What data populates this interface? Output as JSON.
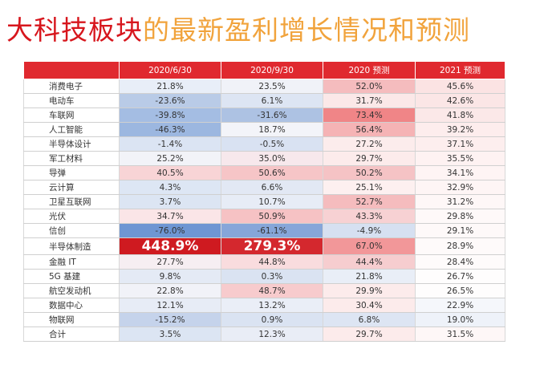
{
  "title": {
    "part1": "大科技板块",
    "part2": "的最新盈利增长情况和预测"
  },
  "table": {
    "headers": [
      "",
      "2020/6/30",
      "2020/9/30",
      "2020 预测",
      "2021 预测"
    ],
    "rows": [
      {
        "name": "消费电子",
        "cells": [
          "21.8%",
          "23.5%",
          "52.0%",
          "45.6%"
        ],
        "colors": [
          "#e8eef8",
          "#f0f2f8",
          "#f5bcbe",
          "#fbe3e3"
        ]
      },
      {
        "name": "电动车",
        "cells": [
          "-23.6%",
          "6.1%",
          "31.7%",
          "42.6%"
        ],
        "colors": [
          "#b9cbe7",
          "#dde5f3",
          "#fbe8e8",
          "#fbe6e6"
        ]
      },
      {
        "name": "车联网",
        "cells": [
          "-39.8%",
          "-31.6%",
          "73.4%",
          "41.8%"
        ],
        "colors": [
          "#a4bde3",
          "#adc2e3",
          "#f08587",
          "#fbe8e8"
        ]
      },
      {
        "name": "人工智能",
        "cells": [
          "-46.3%",
          "18.7%",
          "56.4%",
          "39.2%"
        ],
        "colors": [
          "#9cb7e0",
          "#f3f4f9",
          "#f5b3b5",
          "#fdeded"
        ]
      },
      {
        "name": "半导体设计",
        "cells": [
          "-1.4%",
          "-0.5%",
          "27.2%",
          "37.1%"
        ],
        "colors": [
          "#dbe4f3",
          "#d9e2f2",
          "#fcecec",
          "#fdeeee"
        ]
      },
      {
        "name": "军工材料",
        "cells": [
          "25.2%",
          "35.0%",
          "29.7%",
          "35.5%"
        ],
        "colors": [
          "#f2f3f8",
          "#f7e8ec",
          "#fcebeb",
          "#fef2f2"
        ]
      },
      {
        "name": "导弹",
        "cells": [
          "40.5%",
          "50.6%",
          "50.2%",
          "34.1%"
        ],
        "colors": [
          "#f8d4d6",
          "#f6c5c7",
          "#f5c3c5",
          "#fef4f4"
        ]
      },
      {
        "name": "云计算",
        "cells": [
          "4.3%",
          "6.6%",
          "25.1%",
          "32.9%"
        ],
        "colors": [
          "#dde6f4",
          "#e2e8f4",
          "#fdf0f0",
          "#fef5f5"
        ]
      },
      {
        "name": "卫星互联网",
        "cells": [
          "3.7%",
          "10.7%",
          "52.7%",
          "31.2%"
        ],
        "colors": [
          "#dce5f3",
          "#e7ecf6",
          "#f5bcbe",
          "#fef7f7"
        ]
      },
      {
        "name": "光伏",
        "cells": [
          "34.7%",
          "50.9%",
          "43.3%",
          "29.8%"
        ],
        "colors": [
          "#fae5e7",
          "#f6c2c4",
          "#f7d1d3",
          "#fef9f9"
        ]
      },
      {
        "name": "信创",
        "cells": [
          "-76.0%",
          "-61.1%",
          "-4.9%",
          "29.1%"
        ],
        "colors": [
          "#6e96d3",
          "#86a6d9",
          "#d6e0f1",
          "#fef9f9"
        ]
      },
      {
        "name": "半导体制造",
        "cells": [
          "448.9%",
          "279.3%",
          "67.0%",
          "28.9%"
        ],
        "colors": [
          "#cf1a20",
          "#d4282e",
          "#f29799",
          "#fefafa"
        ],
        "big": true
      },
      {
        "name": "金融 IT",
        "cells": [
          "27.7%",
          "44.8%",
          "44.4%",
          "28.4%"
        ],
        "colors": [
          "#f6eef2",
          "#f9dcde",
          "#f6cdcf",
          "#fefbfb"
        ]
      },
      {
        "name": "5G 基建",
        "cells": [
          "9.8%",
          "0.3%",
          "21.8%",
          "26.7%"
        ],
        "colors": [
          "#e4eaf5",
          "#dae3f2",
          "#e9eef7",
          "#fefdfd"
        ]
      },
      {
        "name": "航空发动机",
        "cells": [
          "22.8%",
          "48.7%",
          "29.9%",
          "26.5%"
        ],
        "colors": [
          "#f1f2f8",
          "#f7cbcd",
          "#fcebeb",
          "#fefdfd"
        ]
      },
      {
        "name": "数据中心",
        "cells": [
          "12.1%",
          "13.2%",
          "30.4%",
          "22.9%"
        ],
        "colors": [
          "#e7ecf6",
          "#eaeef7",
          "#fcebeb",
          "#f5f7fb"
        ]
      },
      {
        "name": "物联网",
        "cells": [
          "-15.2%",
          "0.9%",
          "6.8%",
          "19.0%"
        ],
        "colors": [
          "#c5d3eb",
          "#dae3f2",
          "#dde5f3",
          "#eef2f9"
        ]
      },
      {
        "name": "合计",
        "cells": [
          "3.5%",
          "12.3%",
          "29.7%",
          "31.5%"
        ],
        "colors": [
          "#dce5f3",
          "#e9edf6",
          "#fcebeb",
          "#fef7f7"
        ]
      }
    ]
  }
}
